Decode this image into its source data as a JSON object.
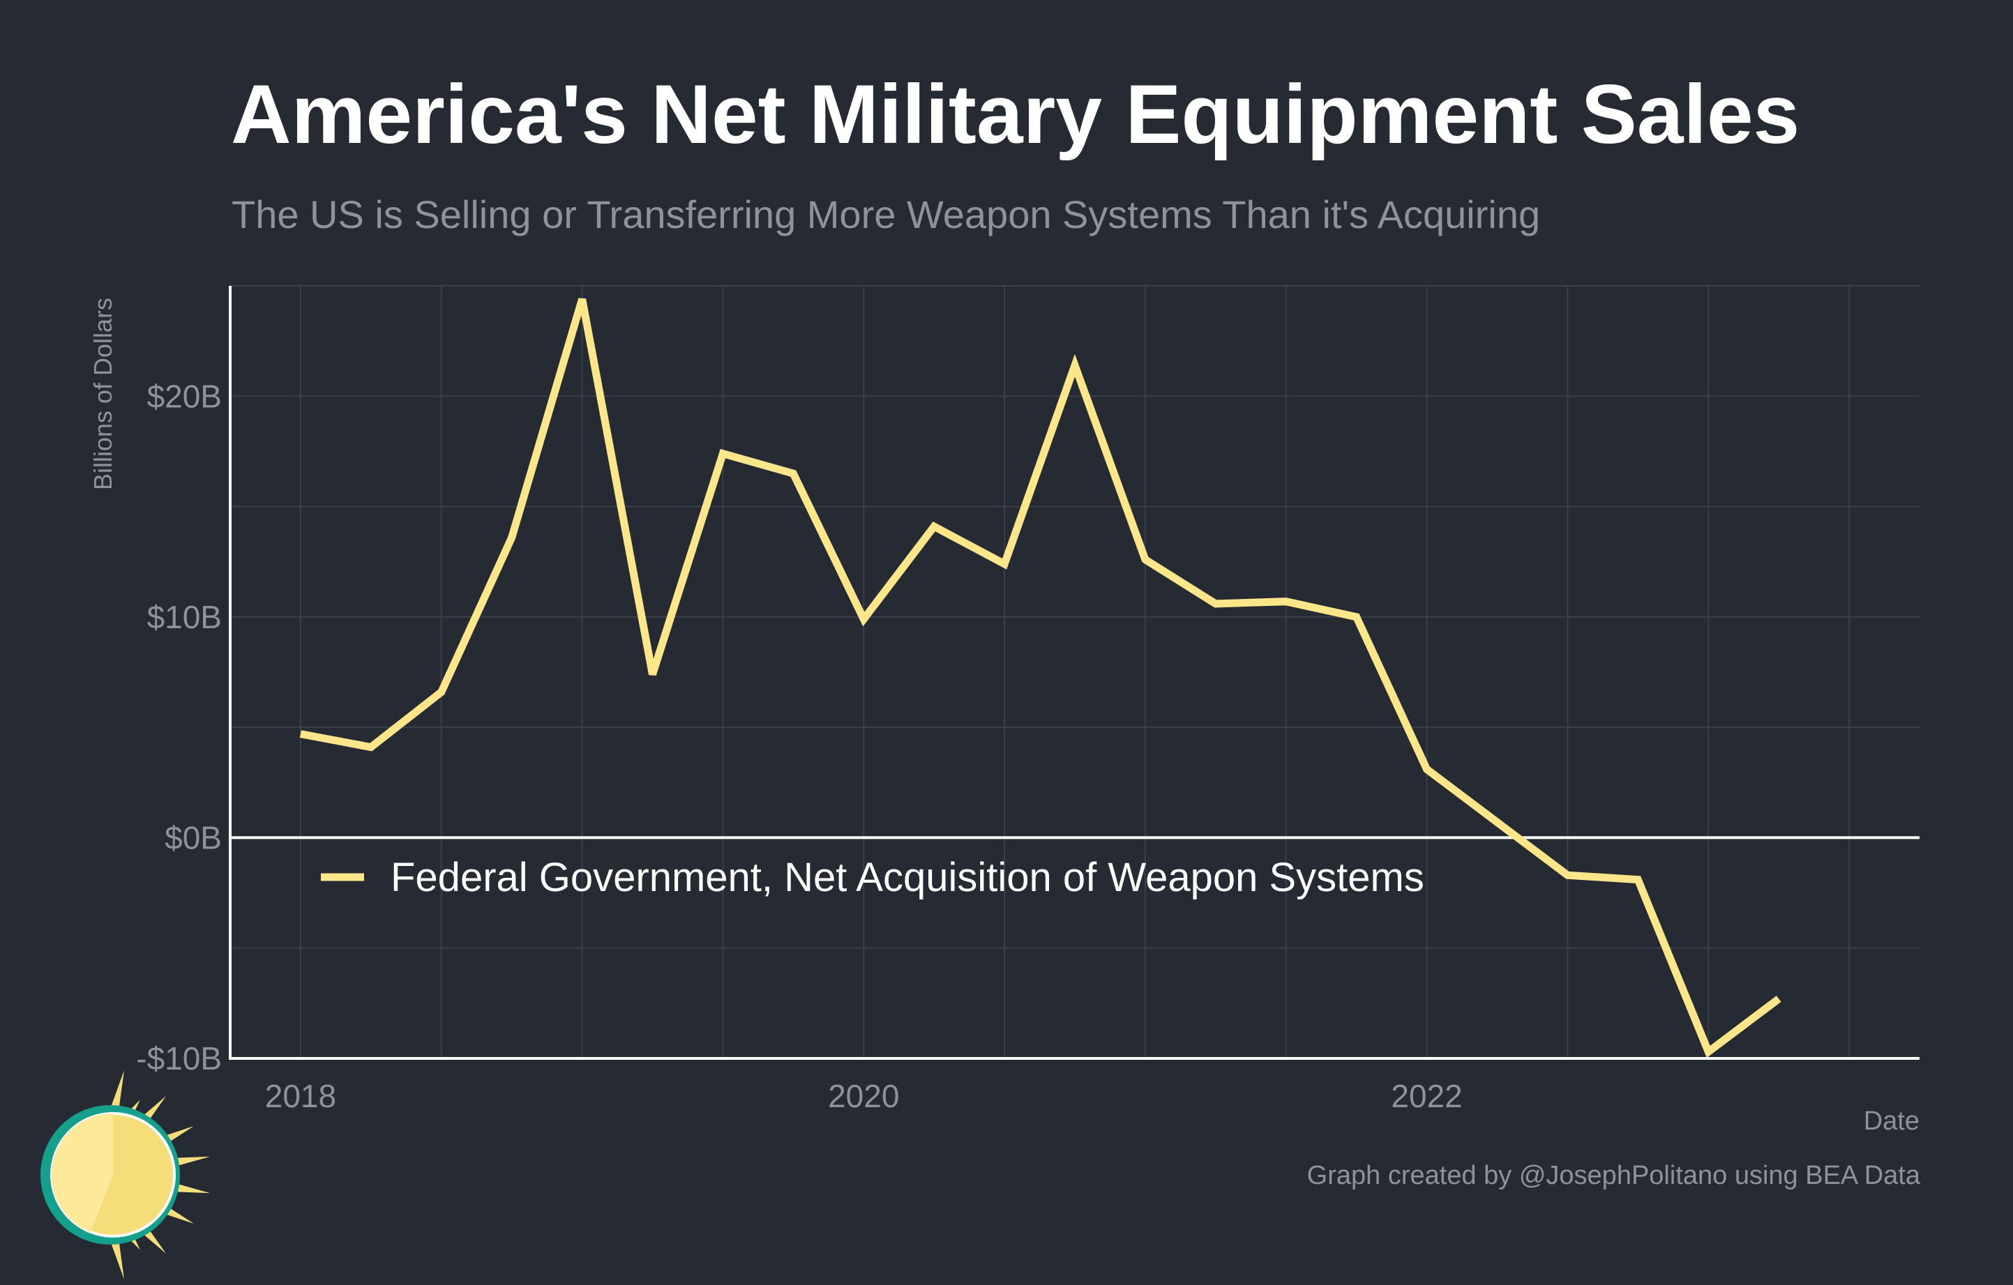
{
  "page": {
    "title": "America's Net Military Equipment Sales",
    "subtitle": "The US is Selling or Transferring More Weapon Systems Than it's Acquiring",
    "caption": "Graph created by @JosephPolitano using BEA Data",
    "logo_icon": "sun-logo-icon"
  },
  "colors": {
    "background": "#252a33",
    "line": "#fde68a",
    "grid": "#3a404a",
    "axis": "#ffffff",
    "muted_text": "#8e939b",
    "logo_teal": "#14a08c",
    "logo_yellow": "#f5de7a",
    "logo_light": "#fde99a"
  },
  "chart_data": {
    "type": "line",
    "title": "America's Net Military Equipment Sales",
    "subtitle": "The US is Selling or Transferring More Weapon Systems Than it's Acquiring",
    "xlabel": "Date",
    "ylabel": "Billions of Dollars",
    "xlim": [
      2017.75,
      2023.75
    ],
    "ylim": [
      -10,
      25
    ],
    "x_ticks": [
      {
        "value": 2018,
        "label": "2018"
      },
      {
        "value": 2020,
        "label": "2020"
      },
      {
        "value": 2022,
        "label": "2022"
      }
    ],
    "y_ticks": [
      {
        "value": -10,
        "label": "-$10B"
      },
      {
        "value": 0,
        "label": "$0B"
      },
      {
        "value": 10,
        "label": "$10B"
      },
      {
        "value": 20,
        "label": "$20B"
      }
    ],
    "grid": true,
    "legend_position": "inside-lower-left",
    "series": [
      {
        "name": "Federal Government, Net Acquisition of Weapon Systems",
        "color": "#fde68a",
        "x": [
          "2018-Q1",
          "2018-Q2",
          "2018-Q3",
          "2018-Q4",
          "2019-Q1",
          "2019-Q2",
          "2019-Q3",
          "2019-Q4",
          "2020-Q1",
          "2020-Q2",
          "2020-Q3",
          "2020-Q4",
          "2021-Q1",
          "2021-Q2",
          "2021-Q3",
          "2021-Q4",
          "2022-Q1",
          "2022-Q2",
          "2022-Q3",
          "2022-Q4",
          "2023-Q1",
          "2023-Q2"
        ],
        "values": [
          4.7,
          4.1,
          6.6,
          13.6,
          24.4,
          7.4,
          17.4,
          16.5,
          9.9,
          14.1,
          12.4,
          21.4,
          12.6,
          10.6,
          10.7,
          10.0,
          3.1,
          0.7,
          -1.7,
          -1.9,
          -9.7,
          -7.3
        ]
      }
    ]
  }
}
